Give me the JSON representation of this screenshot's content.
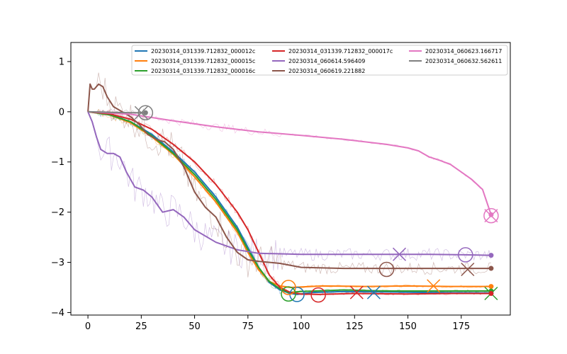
{
  "chart_data": {
    "type": "line",
    "xlim": [
      -8,
      198
    ],
    "ylim": [
      -4.05,
      1.38
    ],
    "x_ticks": [
      0,
      25,
      50,
      75,
      100,
      125,
      150,
      175
    ],
    "y_ticks": [
      1,
      0,
      -1,
      -2,
      -3,
      -4
    ],
    "grid": false,
    "legend_position": "top-right",
    "series": [
      {
        "name": "20230314_031339.712832_000012c",
        "color": "#1f77b4",
        "points": [
          [
            0,
            0
          ],
          [
            10,
            -0.05
          ],
          [
            20,
            -0.2
          ],
          [
            30,
            -0.45
          ],
          [
            40,
            -0.8
          ],
          [
            50,
            -1.2
          ],
          [
            60,
            -1.7
          ],
          [
            70,
            -2.3
          ],
          [
            75,
            -2.7
          ],
          [
            80,
            -3.1
          ],
          [
            85,
            -3.4
          ],
          [
            90,
            -3.55
          ],
          [
            95,
            -3.62
          ],
          [
            98,
            -3.64
          ],
          [
            105,
            -3.6
          ],
          [
            120,
            -3.58
          ],
          [
            140,
            -3.59
          ],
          [
            160,
            -3.6
          ],
          [
            189,
            -3.61
          ]
        ],
        "circle_marker": [
          98,
          -3.64
        ],
        "x_marker": [
          134,
          -3.6
        ]
      },
      {
        "name": "20230314_031339.712832_000015c",
        "color": "#ff7f0e",
        "points": [
          [
            0,
            0
          ],
          [
            10,
            -0.06
          ],
          [
            20,
            -0.22
          ],
          [
            30,
            -0.5
          ],
          [
            40,
            -0.85
          ],
          [
            50,
            -1.3
          ],
          [
            60,
            -1.8
          ],
          [
            70,
            -2.4
          ],
          [
            75,
            -2.8
          ],
          [
            80,
            -3.15
          ],
          [
            85,
            -3.38
          ],
          [
            90,
            -3.47
          ],
          [
            95,
            -3.5
          ],
          [
            110,
            -3.47
          ],
          [
            130,
            -3.48
          ],
          [
            150,
            -3.47
          ],
          [
            170,
            -3.48
          ],
          [
            189,
            -3.48
          ]
        ],
        "circle_marker": [
          94,
          -3.5
        ],
        "x_marker": [
          162,
          -3.47
        ]
      },
      {
        "name": "20230314_031339.712832_000016c",
        "color": "#2ca02c",
        "points": [
          [
            0,
            0
          ],
          [
            10,
            -0.06
          ],
          [
            20,
            -0.2
          ],
          [
            30,
            -0.48
          ],
          [
            40,
            -0.83
          ],
          [
            50,
            -1.25
          ],
          [
            60,
            -1.75
          ],
          [
            70,
            -2.35
          ],
          [
            75,
            -2.75
          ],
          [
            80,
            -3.1
          ],
          [
            85,
            -3.38
          ],
          [
            90,
            -3.53
          ],
          [
            94,
            -3.6
          ],
          [
            100,
            -3.58
          ],
          [
            120,
            -3.55
          ],
          [
            140,
            -3.57
          ],
          [
            160,
            -3.57
          ],
          [
            189,
            -3.57
          ]
        ],
        "circle_marker": [
          94,
          -3.63
        ],
        "x_marker": [
          189,
          -3.62
        ]
      },
      {
        "name": "20230314_031339.712832_000017c",
        "color": "#d62728",
        "points": [
          [
            0,
            0
          ],
          [
            10,
            -0.04
          ],
          [
            20,
            -0.15
          ],
          [
            30,
            -0.35
          ],
          [
            40,
            -0.65
          ],
          [
            50,
            -1.0
          ],
          [
            60,
            -1.45
          ],
          [
            70,
            -2.0
          ],
          [
            75,
            -2.35
          ],
          [
            80,
            -2.8
          ],
          [
            85,
            -3.25
          ],
          [
            90,
            -3.5
          ],
          [
            95,
            -3.6
          ],
          [
            100,
            -3.63
          ],
          [
            108,
            -3.64
          ],
          [
            125,
            -3.62
          ],
          [
            150,
            -3.63
          ],
          [
            170,
            -3.62
          ],
          [
            189,
            -3.62
          ]
        ],
        "circle_marker": [
          108,
          -3.65
        ],
        "x_marker": [
          126,
          -3.6
        ]
      },
      {
        "name": "20230314_060614.596409",
        "color": "#9467bd",
        "points": [
          [
            0,
            0
          ],
          [
            2,
            -0.2
          ],
          [
            4,
            -0.5
          ],
          [
            6,
            -0.75
          ],
          [
            9,
            -0.83
          ],
          [
            12,
            -0.83
          ],
          [
            15,
            -0.9
          ],
          [
            18,
            -1.2
          ],
          [
            22,
            -1.5
          ],
          [
            26,
            -1.56
          ],
          [
            30,
            -1.7
          ],
          [
            35,
            -2.0
          ],
          [
            40,
            -1.95
          ],
          [
            45,
            -2.1
          ],
          [
            50,
            -2.35
          ],
          [
            60,
            -2.6
          ],
          [
            70,
            -2.75
          ],
          [
            80,
            -2.82
          ],
          [
            100,
            -2.84
          ],
          [
            120,
            -2.84
          ],
          [
            140,
            -2.84
          ],
          [
            160,
            -2.84
          ],
          [
            177,
            -2.85
          ],
          [
            189,
            -2.86
          ]
        ],
        "circle_marker": [
          177,
          -2.85
        ],
        "x_marker": [
          146,
          -2.84
        ]
      },
      {
        "name": "20230314_060619.221882",
        "color": "#8c564b",
        "points": [
          [
            0,
            0
          ],
          [
            1,
            0.55
          ],
          [
            2,
            0.45
          ],
          [
            3,
            0.45
          ],
          [
            5,
            0.55
          ],
          [
            7,
            0.5
          ],
          [
            9,
            0.3
          ],
          [
            12,
            0.1
          ],
          [
            16,
            0.0
          ],
          [
            20,
            -0.1
          ],
          [
            24,
            -0.25
          ],
          [
            28,
            -0.45
          ],
          [
            32,
            -0.55
          ],
          [
            36,
            -0.6
          ],
          [
            40,
            -0.75
          ],
          [
            45,
            -1.1
          ],
          [
            50,
            -1.6
          ],
          [
            55,
            -1.9
          ],
          [
            60,
            -2.1
          ],
          [
            65,
            -2.5
          ],
          [
            70,
            -2.8
          ],
          [
            75,
            -2.95
          ],
          [
            80,
            -2.98
          ],
          [
            90,
            -3.02
          ],
          [
            100,
            -3.1
          ],
          [
            120,
            -3.12
          ],
          [
            140,
            -3.12
          ],
          [
            160,
            -3.12
          ],
          [
            189,
            -3.12
          ]
        ],
        "circle_marker": [
          140,
          -3.14
        ],
        "x_marker": [
          178,
          -3.14
        ]
      },
      {
        "name": "20230314_060623.166717",
        "color": "#e377c2",
        "points": [
          [
            0,
            0
          ],
          [
            20,
            -0.05
          ],
          [
            40,
            -0.18
          ],
          [
            60,
            -0.3
          ],
          [
            80,
            -0.4
          ],
          [
            100,
            -0.47
          ],
          [
            120,
            -0.55
          ],
          [
            140,
            -0.65
          ],
          [
            150,
            -0.72
          ],
          [
            155,
            -0.78
          ],
          [
            160,
            -0.9
          ],
          [
            165,
            -0.97
          ],
          [
            170,
            -1.05
          ],
          [
            175,
            -1.2
          ],
          [
            180,
            -1.35
          ],
          [
            185,
            -1.55
          ],
          [
            187,
            -1.8
          ],
          [
            189,
            -2.05
          ]
        ],
        "circle_marker": [
          189,
          -2.07
        ],
        "x_marker": [
          189,
          -2.07
        ]
      },
      {
        "name": "20230314_060632.562611",
        "color": "#7f7f7f",
        "points": [
          [
            0,
            0
          ],
          [
            10,
            -0.01
          ],
          [
            20,
            -0.02
          ],
          [
            27,
            -0.02
          ]
        ],
        "circle_marker": [
          27,
          -0.02
        ],
        "x_marker": [
          25,
          -0.02
        ]
      }
    ]
  }
}
